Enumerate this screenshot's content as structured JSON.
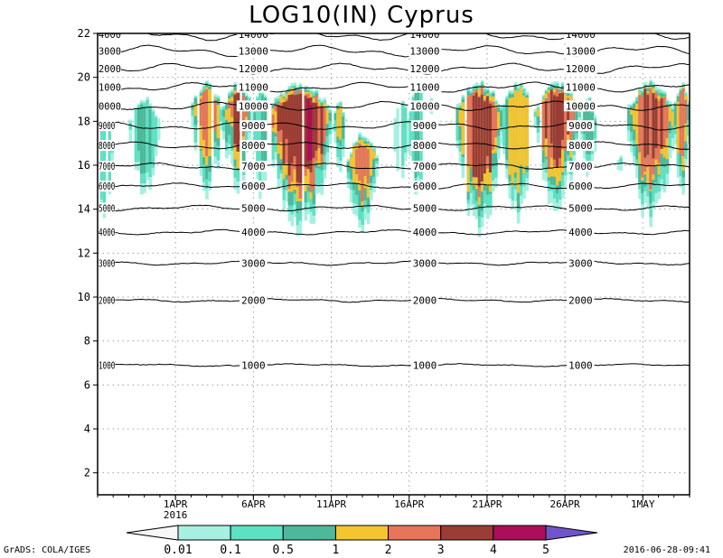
{
  "chart_data": {
    "type": "heatmap",
    "title": "LOG10(IN) Cyprus",
    "xlabel": "",
    "ylabel": "",
    "xlim": [
      "2016-03-27",
      "2016-05-04"
    ],
    "ylim": [
      1,
      22
    ],
    "grid": true,
    "x_ticks": [
      {
        "date": "2016-04-01",
        "label": "1APR",
        "sublabel": "2016"
      },
      {
        "date": "2016-04-06",
        "label": "6APR",
        "sublabel": ""
      },
      {
        "date": "2016-04-11",
        "label": "11APR",
        "sublabel": ""
      },
      {
        "date": "2016-04-16",
        "label": "16APR",
        "sublabel": ""
      },
      {
        "date": "2016-04-21",
        "label": "21APR",
        "sublabel": ""
      },
      {
        "date": "2016-04-26",
        "label": "26APR",
        "sublabel": ""
      },
      {
        "date": "2016-05-01",
        "label": "1MAY",
        "sublabel": ""
      }
    ],
    "y_ticks": [
      "2",
      "4",
      "6",
      "8",
      "10",
      "12",
      "14",
      "16",
      "18",
      "20",
      "22"
    ],
    "contours": [
      {
        "label": "1000",
        "level": 6.9
      },
      {
        "label": "2000",
        "level": 9.85
      },
      {
        "label": "3000",
        "level": 11.55
      },
      {
        "label": "4000",
        "level": 12.95
      },
      {
        "label": "5000",
        "level": 14.05
      },
      {
        "label": "6000",
        "level": 15.05
      },
      {
        "label": "7000",
        "level": 15.95
      },
      {
        "label": "8000",
        "level": 16.9
      },
      {
        "label": "9000",
        "level": 17.8
      },
      {
        "label": "10000",
        "level": 18.7
      },
      {
        "label": "11000",
        "level": 19.55
      },
      {
        "label": "12000",
        "level": 20.4
      },
      {
        "label": "13000",
        "level": 21.2
      },
      {
        "label": "14000",
        "level": 21.95
      }
    ],
    "contour_label_dates": [
      "2016-04-06",
      "2016-04-17",
      "2016-04-27"
    ],
    "legend": {
      "placement": "bottom",
      "labels": [
        "0.01",
        "0.1",
        "0.5",
        "1",
        "2",
        "3",
        "4",
        "5"
      ],
      "colors": [
        "#f7f7f7",
        "#a6f0e2",
        "#5fe0c2",
        "#4fb89a",
        "#f5c431",
        "#e6765a",
        "#9a3d35",
        "#aa0f57",
        "#6f55c9"
      ]
    },
    "cloud_events": [
      {
        "start": "2016-03-27",
        "end": "2016-03-28",
        "base": 12.8,
        "top": 18.2,
        "max_level": 2
      },
      {
        "start": "2016-03-29",
        "end": "2016-03-31",
        "base": 14.3,
        "top": 19.2,
        "max_level": 3
      },
      {
        "start": "2016-04-02",
        "end": "2016-04-04",
        "base": 13.9,
        "top": 19.9,
        "max_level": 5
      },
      {
        "start": "2016-04-04",
        "end": "2016-04-06",
        "base": 14.5,
        "top": 19.9,
        "max_level": 6
      },
      {
        "start": "2016-04-06",
        "end": "2016-04-07",
        "base": 14.3,
        "top": 19.6,
        "max_level": 3
      },
      {
        "start": "2016-04-07",
        "end": "2016-04-11",
        "base": 12.4,
        "top": 19.9,
        "max_level": 7
      },
      {
        "start": "2016-04-11",
        "end": "2016-04-12",
        "base": 15.5,
        "top": 19.0,
        "max_level": 4
      },
      {
        "start": "2016-04-12",
        "end": "2016-04-14",
        "base": 12.5,
        "top": 17.6,
        "max_level": 5
      },
      {
        "start": "2016-04-15",
        "end": "2016-04-16",
        "base": 14.6,
        "top": 19.2,
        "max_level": 2
      },
      {
        "start": "2016-04-16",
        "end": "2016-04-17",
        "base": 13.9,
        "top": 19.8,
        "max_level": 3
      },
      {
        "start": "2016-04-17",
        "end": "2016-04-18",
        "base": 18.0,
        "top": 19.3,
        "max_level": 4
      },
      {
        "start": "2016-04-19",
        "end": "2016-04-22",
        "base": 12.6,
        "top": 19.9,
        "max_level": 6
      },
      {
        "start": "2016-04-22",
        "end": "2016-04-24",
        "base": 13.2,
        "top": 19.9,
        "max_level": 4
      },
      {
        "start": "2016-04-24",
        "end": "2016-04-27",
        "base": 13.6,
        "top": 19.9,
        "max_level": 6
      },
      {
        "start": "2016-04-27",
        "end": "2016-04-28",
        "base": 14.7,
        "top": 19.2,
        "max_level": 3
      },
      {
        "start": "2016-04-29",
        "end": "2016-04-30",
        "base": 15.2,
        "top": 16.5,
        "max_level": 3
      },
      {
        "start": "2016-04-30",
        "end": "2016-05-03",
        "base": 13.0,
        "top": 19.9,
        "max_level": 6
      },
      {
        "start": "2016-05-03",
        "end": "2016-05-04",
        "base": 14.1,
        "top": 19.9,
        "max_level": 5
      }
    ]
  },
  "footer": {
    "left": "GrADS: COLA/IGES",
    "right": "2016-06-28-09:41"
  }
}
